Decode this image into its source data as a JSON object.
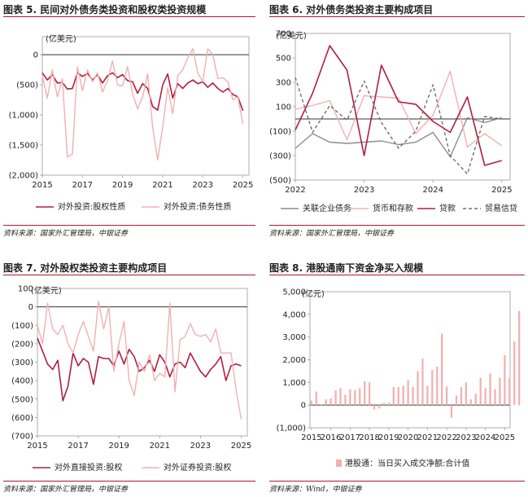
{
  "chart_data": [
    {
      "id": "fig5",
      "type": "line",
      "title": "图表 5. 民间对外债务类投资和股权类投资规模",
      "unit_label": "(亿美元)",
      "source": "资料来源：国家外汇管理局，中银证券",
      "ylim": [
        -2000,
        300
      ],
      "yticks": [
        0,
        -500,
        -1000,
        -1500,
        -2000
      ],
      "ytick_labels": [
        "0",
        "(500)",
        "(1,000)",
        "(1,500)",
        "(2,000)"
      ],
      "xlim": [
        2015,
        2025.3
      ],
      "xticks": [
        2015,
        2017,
        2019,
        2021,
        2023,
        2025
      ],
      "x_start": 2015,
      "x_step": 0.25,
      "zero_line": true,
      "legend": "bottom",
      "series": [
        {
          "name": "对外投资:股权性质",
          "color": "#b01e42",
          "width": 1.6,
          "dash": "",
          "values": [
            -300,
            -420,
            -330,
            -470,
            -460,
            -570,
            -560,
            -300,
            -360,
            -310,
            -420,
            -330,
            -470,
            -350,
            -300,
            -380,
            -330,
            -430,
            -450,
            -640,
            -480,
            -560,
            -860,
            -920,
            -500,
            -320,
            -720,
            -480,
            -560,
            -470,
            -420,
            -480,
            -450,
            -540,
            -470,
            -560,
            -620,
            -560,
            -660,
            -700,
            -930
          ]
        },
        {
          "name": "对外投资:债务性质",
          "color": "#f2b0b0",
          "width": 1.4,
          "dash": "",
          "values": [
            -350,
            -720,
            -250,
            -700,
            -400,
            -1700,
            -1650,
            -200,
            -600,
            -250,
            -450,
            -300,
            -620,
            -430,
            -100,
            -500,
            -520,
            -200,
            -650,
            -900,
            -700,
            -320,
            -1200,
            -1750,
            -1200,
            -550,
            -980,
            -350,
            -250,
            -50,
            100,
            -300,
            -450,
            100,
            0,
            -400,
            -380,
            -450,
            -750,
            -700,
            -1150
          ]
        }
      ]
    },
    {
      "id": "fig6",
      "type": "line",
      "title": "图表 6. 对外债务类投资主要构成项目",
      "unit_label": "(亿美元)",
      "source": "资料来源：国家外汇管理局，中银证券",
      "ylim": [
        -500,
        700
      ],
      "yticks": [
        700,
        500,
        300,
        100,
        -100,
        -300,
        -500
      ],
      "ytick_labels": [
        "700",
        "500",
        "300",
        "100",
        "(100)",
        "(300)",
        "(500)"
      ],
      "xlim": [
        2022,
        2025.12
      ],
      "xticks": [
        2022,
        2023,
        2024,
        2025
      ],
      "x_start": 2022,
      "x_step": 0.25,
      "zero_line": true,
      "legend": "bottom",
      "series": [
        {
          "name": "关联企业债务",
          "color": "#8c8c8c",
          "width": 1.4,
          "dash": "",
          "values": [
            -240,
            -120,
            -190,
            -200,
            -190,
            -180,
            -210,
            -190,
            -110,
            -310,
            10,
            -30,
            10
          ]
        },
        {
          "name": "货币和存款",
          "color": "#f2b0b0",
          "width": 1.4,
          "dash": "",
          "values": [
            80,
            110,
            150,
            -170,
            190,
            180,
            170,
            -120,
            30,
            390,
            -230,
            -120,
            -220
          ]
        },
        {
          "name": "贷款",
          "color": "#b01e42",
          "width": 1.6,
          "dash": "",
          "values": [
            -90,
            210,
            600,
            400,
            -300,
            440,
            140,
            120,
            -20,
            -110,
            180,
            -380,
            -340
          ]
        },
        {
          "name": "贸易信贷",
          "color": "#707070",
          "width": 1.4,
          "dash": "4,3",
          "values": [
            340,
            -110,
            110,
            -10,
            310,
            -30,
            -240,
            -100,
            280,
            -300,
            -450,
            20,
            0
          ]
        }
      ]
    },
    {
      "id": "fig7",
      "type": "line",
      "title": "图表 7. 对外股权类投资主要构成项目",
      "unit_label": "(亿美元)",
      "source": "资料来源：国家外汇管理局，中银证券",
      "ylim": [
        -700,
        100
      ],
      "yticks": [
        100,
        0,
        -100,
        -200,
        -300,
        -400,
        -500,
        -600,
        -700
      ],
      "ytick_labels": [
        "100",
        "0",
        "(100)",
        "(200)",
        "(300)",
        "(400)",
        "(500)",
        "(600)",
        "(700)"
      ],
      "xlim": [
        2015,
        2025.3
      ],
      "xticks": [
        2015,
        2017,
        2019,
        2021,
        2023,
        2025
      ],
      "x_start": 2015,
      "x_step": 0.25,
      "zero_line": true,
      "legend": "bottom",
      "series": [
        {
          "name": "对外直接投资:股权",
          "color": "#b01e42",
          "width": 1.6,
          "dash": "",
          "values": [
            -170,
            -240,
            -310,
            -340,
            -290,
            -510,
            -430,
            -250,
            -320,
            -280,
            -300,
            -420,
            -270,
            -280,
            -280,
            -320,
            -240,
            -310,
            -230,
            -270,
            -350,
            -330,
            -290,
            -350,
            -260,
            -300,
            -380,
            -310,
            -300,
            -330,
            -250,
            -300,
            -350,
            -380,
            -340,
            -310,
            -270,
            -400,
            -320,
            -310,
            -320
          ]
        },
        {
          "name": "对外证券投资:股权",
          "color": "#f2b0b0",
          "width": 1.4,
          "dash": "",
          "values": [
            -100,
            -200,
            20,
            -120,
            -150,
            -100,
            -200,
            -250,
            -150,
            -80,
            -160,
            -240,
            30,
            -120,
            0,
            -350,
            -200,
            -80,
            -400,
            -480,
            -300,
            -350,
            -260,
            -400,
            -360,
            -380,
            20,
            -460,
            -180,
            -160,
            -90,
            -150,
            -160,
            -150,
            -190,
            -120,
            -250,
            -250,
            -250,
            -450,
            -610
          ]
        }
      ]
    },
    {
      "id": "fig8",
      "type": "bar",
      "title": "图表 8. 港股通南下资金净买入规模",
      "unit_label": "(亿元)",
      "source": "资料来源：Wind，中银证券",
      "ylim": [
        -1000,
        5000
      ],
      "yticks": [
        5000,
        4000,
        3000,
        2000,
        1000,
        0,
        -1000
      ],
      "ytick_labels": [
        "5,000",
        "4,000",
        "3,000",
        "2,000",
        "1,000",
        "0",
        "(1,000)"
      ],
      "xlim": [
        2014.92,
        2025.28
      ],
      "xticks": [
        2015,
        2016,
        2017,
        2018,
        2019,
        2020,
        2021,
        2022,
        2023,
        2024,
        2025
      ],
      "x_start": 2015,
      "x_step": 0.25,
      "zero_line": true,
      "legend": "bottom",
      "series": [
        {
          "name": "港股通：当日买入成交净额:合计值",
          "color": "#f2b0b0",
          "values": [
            200,
            600,
            30,
            250,
            300,
            650,
            750,
            450,
            700,
            650,
            750,
            1050,
            1000,
            -200,
            -150,
            100,
            100,
            800,
            800,
            850,
            1100,
            800,
            1500,
            2050,
            850,
            1550,
            1700,
            3150,
            820,
            -550,
            420,
            780,
            1000,
            250,
            500,
            1200,
            750,
            1400,
            700,
            1200,
            2200,
            1200,
            2800,
            4150
          ]
        }
      ]
    }
  ]
}
